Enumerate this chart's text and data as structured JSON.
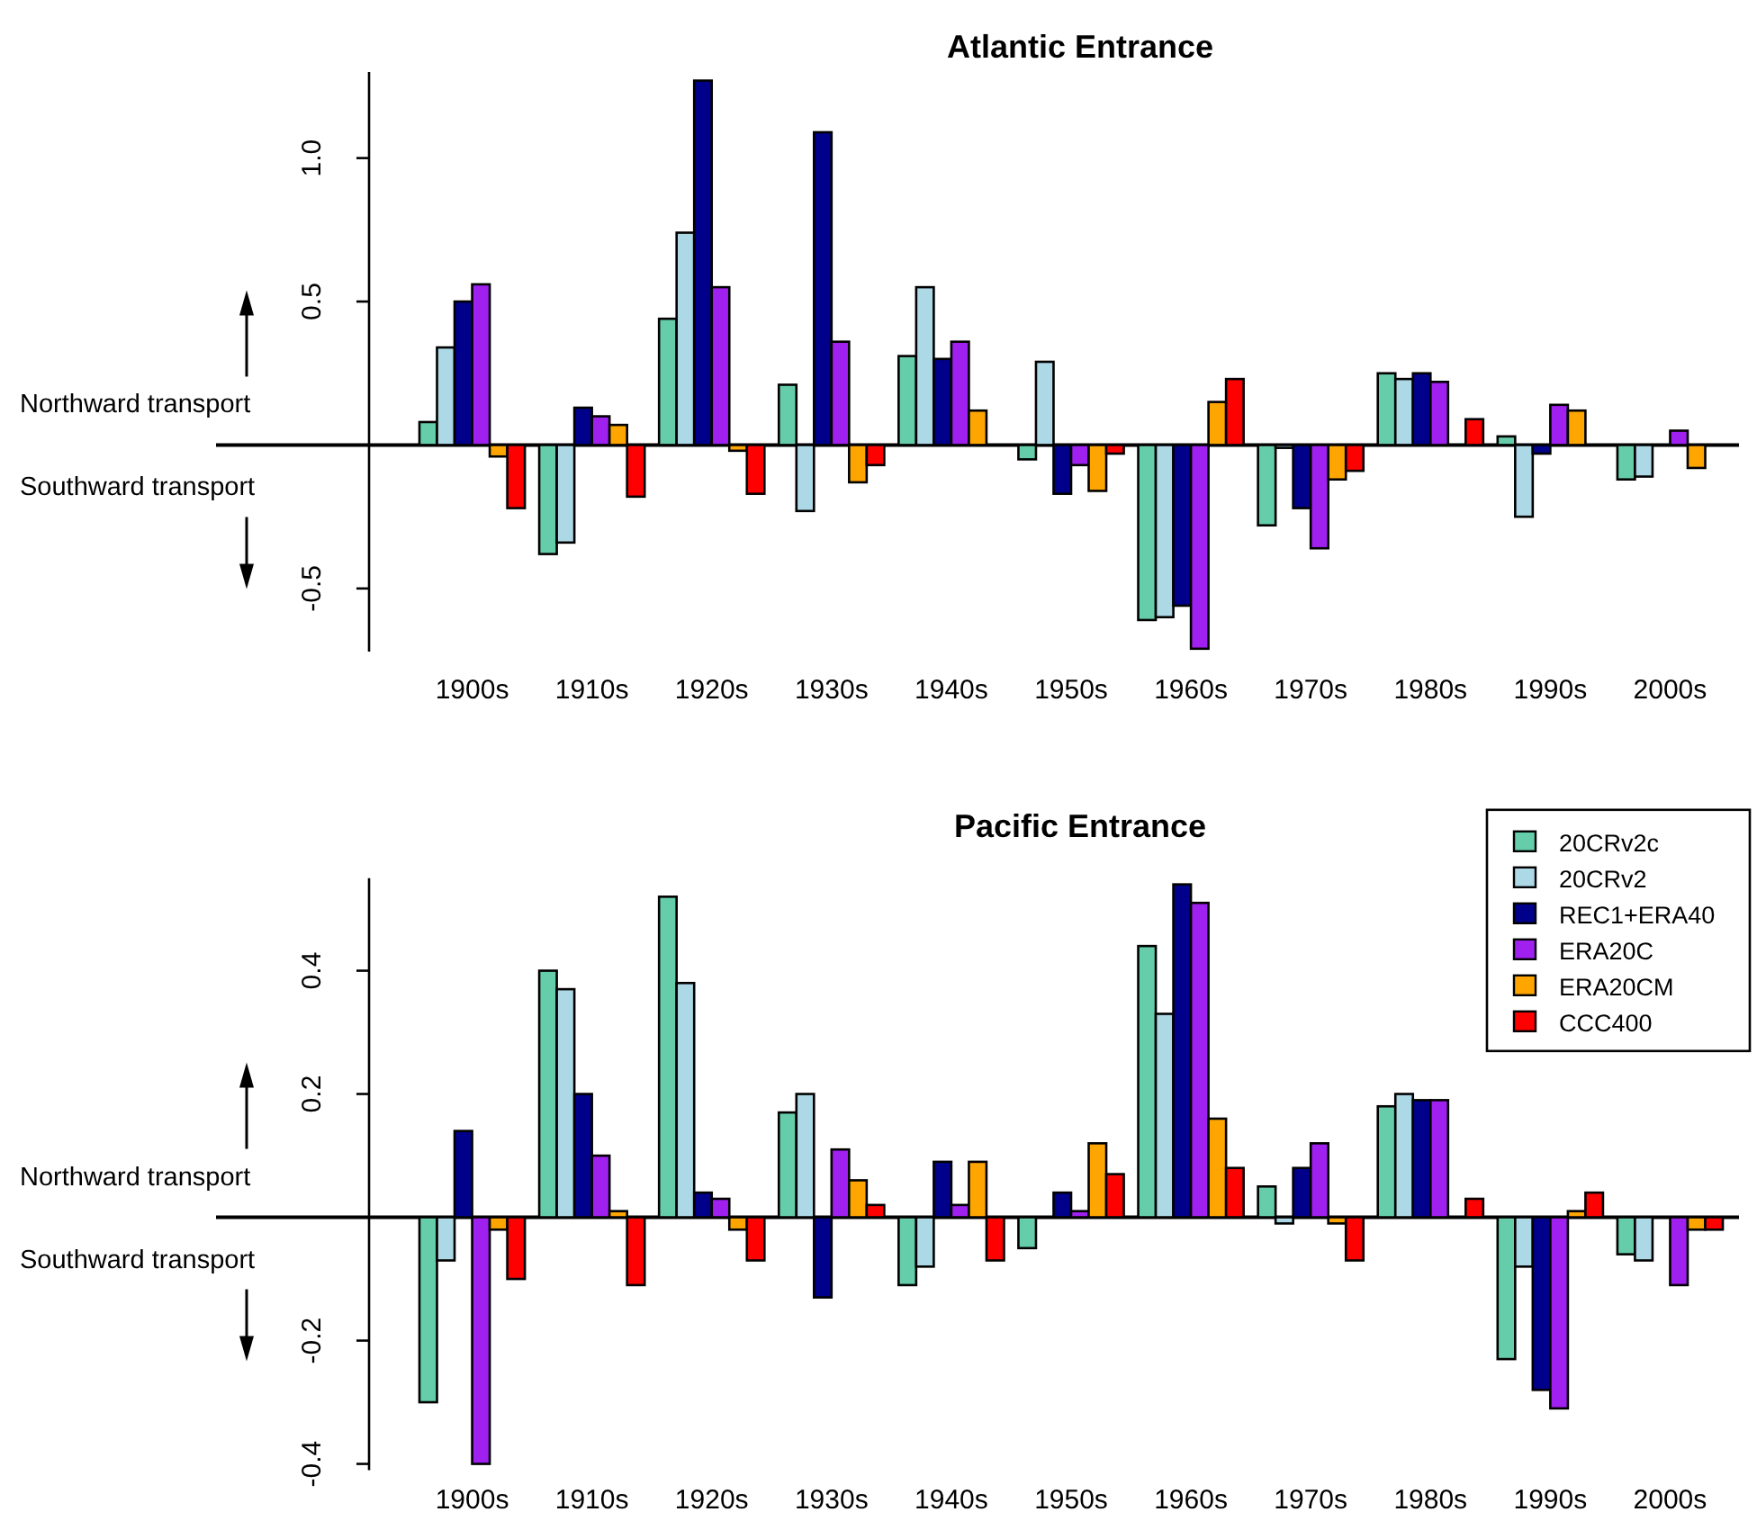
{
  "chart_data": [
    {
      "type": "bar",
      "title": "Atlantic Entrance",
      "categories": [
        "1900s",
        "1910s",
        "1920s",
        "1930s",
        "1940s",
        "1950s",
        "1960s",
        "1970s",
        "1980s",
        "1990s",
        "2000s"
      ],
      "series": [
        {
          "color": "#66cdaa",
          "values": [
            0.08,
            -0.38,
            0.44,
            0.21,
            0.31,
            -0.05,
            -0.61,
            -0.28,
            0.25,
            0.03,
            -0.12
          ]
        },
        {
          "color": "#add8e6",
          "values": [
            0.34,
            -0.34,
            0.74,
            -0.23,
            0.55,
            0.29,
            -0.6,
            -0.01,
            0.23,
            -0.25,
            -0.11
          ]
        },
        {
          "color": "#00008b",
          "values": [
            0.5,
            0.13,
            1.27,
            1.09,
            0.3,
            -0.17,
            -0.56,
            -0.22,
            0.25,
            -0.03,
            null
          ]
        },
        {
          "color": "#a020f0",
          "values": [
            0.56,
            0.1,
            0.55,
            0.36,
            0.36,
            -0.07,
            -0.71,
            -0.36,
            0.22,
            0.14,
            0.05
          ]
        },
        {
          "color": "#ffa500",
          "values": [
            -0.04,
            0.07,
            -0.02,
            -0.13,
            0.12,
            -0.16,
            0.15,
            -0.12,
            null,
            0.12,
            -0.08
          ]
        },
        {
          "color": "#ff0000",
          "values": [
            -0.22,
            -0.18,
            -0.17,
            -0.07,
            null,
            -0.03,
            0.23,
            -0.09,
            0.09,
            null,
            null
          ]
        }
      ],
      "ylim": [
        -0.72,
        1.3
      ],
      "yticks": [
        -0.5,
        0.5,
        {
          "value": 1,
          "label": "1.0"
        }
      ],
      "legend": false,
      "annotations": [
        "Northward transport",
        "Southward transport"
      ]
    },
    {
      "type": "bar",
      "title": "Pacific Entrance",
      "categories": [
        "1900s",
        "1910s",
        "1920s",
        "1930s",
        "1940s",
        "1950s",
        "1960s",
        "1970s",
        "1980s",
        "1990s",
        "2000s"
      ],
      "series": [
        {
          "name": "20CRv2c",
          "color": "#66cdaa",
          "values": [
            -0.3,
            0.4,
            0.52,
            0.17,
            -0.11,
            -0.05,
            0.44,
            0.05,
            0.18,
            -0.23,
            -0.06
          ]
        },
        {
          "name": "20CRv2",
          "color": "#add8e6",
          "values": [
            -0.07,
            0.37,
            0.38,
            0.2,
            -0.08,
            null,
            0.33,
            -0.01,
            0.2,
            -0.08,
            -0.07
          ]
        },
        {
          "name": "REC1+ERA40",
          "color": "#00008b",
          "values": [
            0.14,
            0.2,
            0.04,
            -0.13,
            0.09,
            0.04,
            0.54,
            0.08,
            0.19,
            -0.28,
            null
          ]
        },
        {
          "name": "ERA20C",
          "color": "#a020f0",
          "values": [
            -0.4,
            0.1,
            0.03,
            0.11,
            0.02,
            0.01,
            0.51,
            0.12,
            0.19,
            -0.31,
            -0.11
          ]
        },
        {
          "name": "ERA20CM",
          "color": "#ffa500",
          "values": [
            -0.02,
            0.01,
            -0.02,
            0.06,
            0.09,
            0.12,
            0.16,
            -0.01,
            null,
            0.01,
            -0.02
          ]
        },
        {
          "name": "CCC400",
          "color": "#ff0000",
          "values": [
            -0.1,
            -0.11,
            -0.07,
            0.02,
            -0.07,
            0.07,
            0.08,
            -0.07,
            0.03,
            0.04,
            -0.02
          ]
        }
      ],
      "ylim": [
        -0.41,
        0.55
      ],
      "yticks": [
        -0.4,
        -0.2,
        0.2,
        0.4
      ],
      "legend": "top right",
      "annotations": [
        "Northward transport",
        "Southward transport"
      ]
    }
  ]
}
